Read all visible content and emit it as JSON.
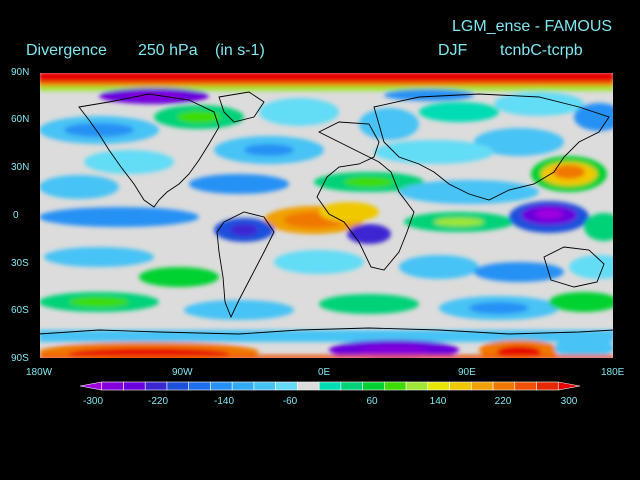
{
  "header": {
    "experiment": "LGM_ense - FAMOUS",
    "variable": "Divergence",
    "level": "250 hPa",
    "units": "(in s-1)",
    "season": "DJF",
    "comparison": "tcnbC-tcrpb"
  },
  "lat_labels": [
    "90N",
    "60N",
    "30N",
    "0",
    "30S",
    "60S",
    "90S"
  ],
  "lon_labels": [
    "180W",
    "90W",
    "0E",
    "90E",
    "180E"
  ],
  "colorbar": {
    "tick_labels": [
      "-300",
      "-220",
      "-140",
      "-60",
      "60",
      "140",
      "220",
      "300"
    ],
    "colors": [
      "#a000e0",
      "#8200dc",
      "#6a00dc",
      "#3c28d2",
      "#1e50dc",
      "#1e6ef0",
      "#2891f5",
      "#32aaf5",
      "#46c3f5",
      "#64dcf5",
      "#dcdcdc",
      "#00dcb4",
      "#00d278",
      "#00d232",
      "#3cdc00",
      "#a0e632",
      "#e6e600",
      "#f0c800",
      "#f0a000",
      "#f07800",
      "#f05000",
      "#e62800",
      "#e60000"
    ]
  },
  "colors": {
    "label_text": "#7fe6f0",
    "background": "#000000",
    "ocean_fill": "#dcdcdc"
  }
}
